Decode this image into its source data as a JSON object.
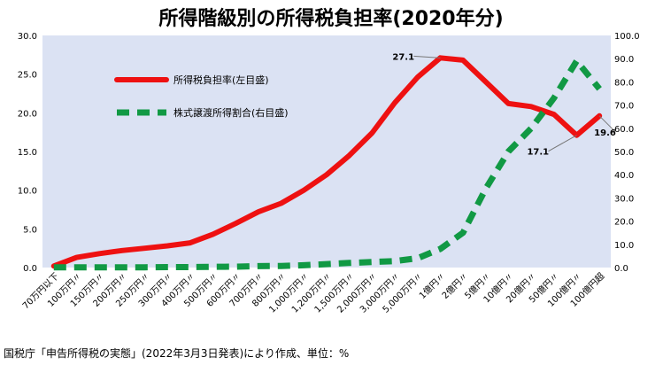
{
  "chart_data": {
    "type": "line",
    "title": "所得階級別の所得税負担率(2020年分)",
    "categories": [
      "70万円以下",
      "100万円〃",
      "150万円〃",
      "200万円〃",
      "250万円〃",
      "300万円〃",
      "400万円〃",
      "500万円〃",
      "600万円〃",
      "700万円〃",
      "800万円〃",
      "1,000万円〃",
      "1,200万円〃",
      "1,500万円〃",
      "2,000万円〃",
      "3,000万円〃",
      "5,000万円〃",
      "1億円〃",
      "2億円〃",
      "5億円〃",
      "10億円〃",
      "20億円〃",
      "50億円〃",
      "100億円〃",
      "100億円超"
    ],
    "left_axis": {
      "min": 0,
      "max": 30,
      "step": 5,
      "ticks": [
        "0.0",
        "5.0",
        "10.0",
        "15.0",
        "20.0",
        "25.0",
        "30.0"
      ]
    },
    "right_axis": {
      "min": 0,
      "max": 100,
      "step": 10,
      "ticks": [
        "0.0",
        "10.0",
        "20.0",
        "30.0",
        "40.0",
        "50.0",
        "60.0",
        "70.0",
        "80.0",
        "90.0",
        "100.0"
      ]
    },
    "series": [
      {
        "name": "所得税負担率(左目盛)",
        "axis": "left",
        "color": "#ee1111",
        "style": "solid",
        "values": [
          0.2,
          1.3,
          1.8,
          2.2,
          2.5,
          2.8,
          3.2,
          4.3,
          5.7,
          7.2,
          8.3,
          10.0,
          12.0,
          14.5,
          17.4,
          21.3,
          24.6,
          27.1,
          26.8,
          24.0,
          21.2,
          20.8,
          19.8,
          17.1,
          19.6
        ]
      },
      {
        "name": "株式譲渡所得割合(右目盛)",
        "axis": "right",
        "color": "#119944",
        "style": "dashed",
        "values": [
          0.1,
          0.1,
          0.1,
          0.1,
          0.1,
          0.2,
          0.2,
          0.3,
          0.4,
          0.6,
          0.7,
          1.0,
          1.5,
          2.0,
          2.4,
          2.8,
          4.0,
          8.0,
          15.0,
          34.0,
          50.0,
          60.0,
          73.0,
          89.0,
          77.0
        ]
      }
    ],
    "data_labels": [
      {
        "series": 0,
        "index": 17,
        "text": "27.1"
      },
      {
        "series": 0,
        "index": 23,
        "text": "17.1"
      },
      {
        "series": 0,
        "index": 24,
        "text": "19.6"
      }
    ],
    "legend": {
      "placement": "inside-top-left"
    },
    "plot_bg": "#dbe2f3",
    "grid": false
  },
  "source_note": "国税庁「申告所得税の実態」(2022年3月3日発表)により作成、単位：%"
}
